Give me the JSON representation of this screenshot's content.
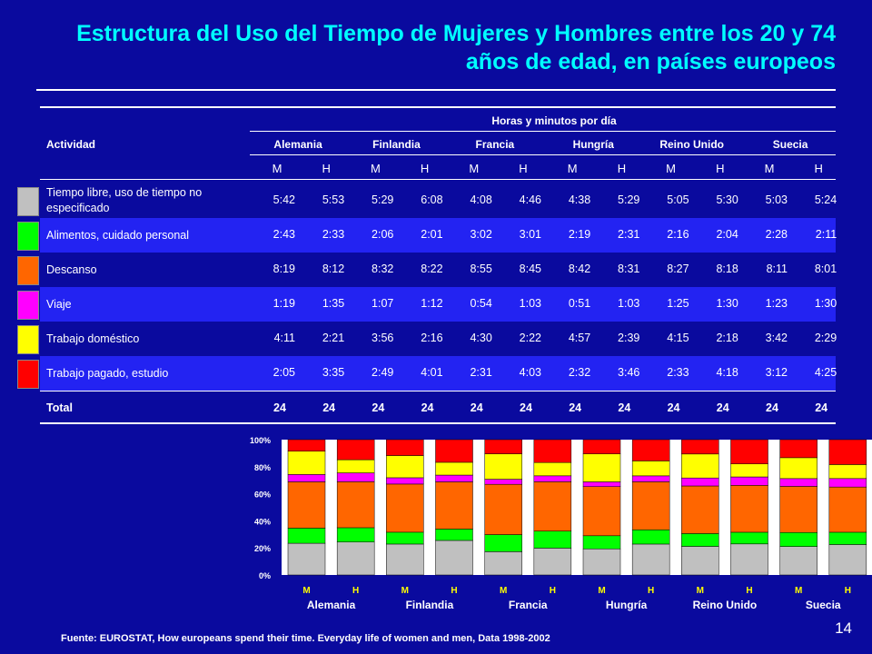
{
  "title": "Estructura del Uso del Tiempo de Mujeres y Hombres entre los 20 y 74 años de edad, en países europeos",
  "table": {
    "header_activity": "Actividad",
    "header_group": "Horas y minutos por día",
    "countries": [
      "Alemania",
      "Finlandia",
      "Francia",
      "Hungría",
      "Reino Unido",
      "Suecia"
    ],
    "sex_labels": [
      "M",
      "H",
      "M",
      "H",
      "M",
      "H",
      "M",
      "H",
      "M",
      "H",
      "M",
      "H"
    ],
    "rows": [
      {
        "activity": "Tiempo libre, uso de tiempo no especificado",
        "color": "#c0c0c0",
        "values": [
          "5:42",
          "5:53",
          "5:29",
          "6:08",
          "4:08",
          "4:46",
          "4:38",
          "5:29",
          "5:05",
          "5:30",
          "5:03",
          "5:24"
        ]
      },
      {
        "activity": "Alimentos, cuidado personal",
        "color": "#00ff00",
        "values": [
          "2:43",
          "2:33",
          "2:06",
          "2:01",
          "3:02",
          "3:01",
          "2:19",
          "2:31",
          "2:16",
          "2:04",
          "2:28",
          "2:11"
        ]
      },
      {
        "activity": "Descanso",
        "color": "#ff6600",
        "values": [
          "8:19",
          "8:12",
          "8:32",
          "8:22",
          "8:55",
          "8:45",
          "8:42",
          "8:31",
          "8:27",
          "8:18",
          "8:11",
          "8:01"
        ]
      },
      {
        "activity": "Viaje",
        "color": "#ff00ff",
        "values": [
          "1:19",
          "1:35",
          "1:07",
          "1:12",
          "0:54",
          "1:03",
          "0:51",
          "1:03",
          "1:25",
          "1:30",
          "1:23",
          "1:30"
        ]
      },
      {
        "activity": "Trabajo doméstico",
        "color": "#ffff00",
        "values": [
          "4:11",
          "2:21",
          "3:56",
          "2:16",
          "4:30",
          "2:22",
          "4:57",
          "2:39",
          "4:15",
          "2:18",
          "3:42",
          "2:29"
        ]
      },
      {
        "activity": "Trabajo pagado, estudio",
        "color": "#ff0000",
        "values": [
          "2:05",
          "3:35",
          "2:49",
          "4:01",
          "2:31",
          "4:03",
          "2:32",
          "3:46",
          "2:33",
          "4:18",
          "3:12",
          "4:25"
        ]
      }
    ],
    "total_label": "Total",
    "totals": [
      "24",
      "24",
      "24",
      "24",
      "24",
      "24",
      "24",
      "24",
      "24",
      "24",
      "24",
      "24"
    ]
  },
  "chart_data": {
    "type": "bar",
    "stacked": "percent",
    "categories": [
      "M",
      "H",
      "M",
      "H",
      "M",
      "H",
      "M",
      "H",
      "M",
      "H",
      "M",
      "H"
    ],
    "groups": [
      "Alemania",
      "Finlandia",
      "Francia",
      "Hungría",
      "Reino Unido",
      "Suecia"
    ],
    "series": [
      {
        "color": "#c0c0c0",
        "values": [
          5.7,
          5.88,
          5.48,
          6.13,
          4.13,
          4.77,
          4.63,
          5.48,
          5.08,
          5.5,
          5.05,
          5.4
        ]
      },
      {
        "color": "#00ff00",
        "values": [
          2.72,
          2.55,
          2.1,
          2.02,
          3.03,
          3.02,
          2.32,
          2.52,
          2.27,
          2.07,
          2.47,
          2.18
        ]
      },
      {
        "color": "#ff6600",
        "values": [
          8.32,
          8.2,
          8.53,
          8.37,
          8.92,
          8.75,
          8.7,
          8.52,
          8.45,
          8.3,
          8.18,
          8.02
        ]
      },
      {
        "color": "#ff00ff",
        "values": [
          1.32,
          1.58,
          1.12,
          1.2,
          0.9,
          1.05,
          0.85,
          1.05,
          1.42,
          1.5,
          1.38,
          1.5
        ]
      },
      {
        "color": "#ffff00",
        "values": [
          4.18,
          2.35,
          3.93,
          2.27,
          4.5,
          2.37,
          4.95,
          2.65,
          4.25,
          2.3,
          3.7,
          2.48
        ]
      },
      {
        "color": "#ff0000",
        "values": [
          2.08,
          3.58,
          2.82,
          4.02,
          2.52,
          4.05,
          2.53,
          3.77,
          2.55,
          4.3,
          3.2,
          4.42
        ]
      }
    ],
    "yticks": [
      "0%",
      "20%",
      "40%",
      "60%",
      "80%",
      "100%"
    ],
    "ylim": [
      0,
      100
    ],
    "grid": false
  },
  "footer": "Fuente: EUROSTAT, How europeans spend their time. Everyday life of women and men, Data 1998-2002",
  "page_number": "14"
}
